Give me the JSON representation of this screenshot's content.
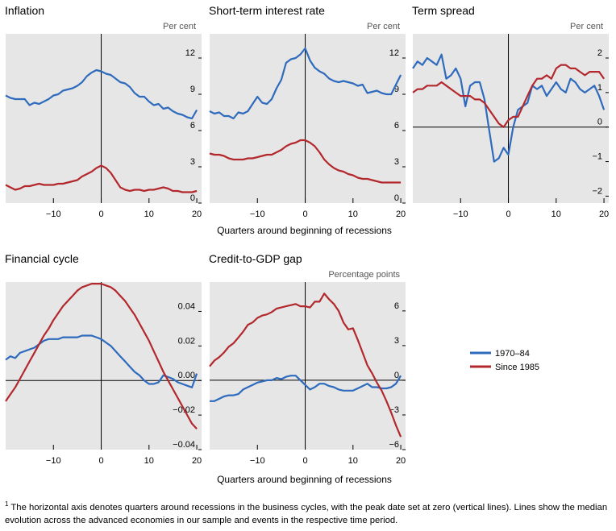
{
  "colors": {
    "series_1970": "#2f6bbd",
    "series_1985": "#b3282d",
    "plot_bg": "#e6e6e6",
    "axis": "#000000"
  },
  "legend": {
    "items": [
      "1970–84",
      "Since 1985"
    ]
  },
  "footnote": {
    "marker": "1",
    "text": "The horizontal axis denotes quarters around recessions in the business cycles, with the peak date set at zero (vertical lines). Lines show the median evolution across the advanced economies in our sample and events in the respective time period."
  },
  "chart_data": [
    {
      "id": "inflation",
      "type": "line",
      "title": "Inflation",
      "unit_label": "Per cent",
      "xlim": [
        -20,
        21
      ],
      "ylim": [
        0,
        14
      ],
      "xticks": [
        -10,
        0,
        10,
        20
      ],
      "yticks": [
        0,
        3,
        6,
        9,
        12
      ],
      "ytick_labels": [
        "0",
        "3",
        "6",
        "9",
        "12"
      ],
      "xlabel": "",
      "series": [
        {
          "name": "1970–84",
          "x": [
            -20,
            -19,
            -18,
            -17,
            -16,
            -15,
            -14,
            -13,
            -12,
            -11,
            -10,
            -9,
            -8,
            -7,
            -6,
            -5,
            -4,
            -3,
            -2,
            -1,
            0,
            1,
            2,
            3,
            4,
            5,
            6,
            7,
            8,
            9,
            10,
            11,
            12,
            13,
            14,
            15,
            16,
            17,
            18,
            19,
            20
          ],
          "values": [
            8.9,
            8.7,
            8.6,
            8.6,
            8.6,
            8.1,
            8.3,
            8.2,
            8.4,
            8.6,
            8.9,
            9.0,
            9.3,
            9.4,
            9.5,
            9.7,
            10.0,
            10.5,
            10.8,
            11.0,
            10.9,
            10.7,
            10.6,
            10.3,
            10.0,
            9.9,
            9.6,
            9.1,
            8.8,
            8.8,
            8.4,
            8.1,
            8.2,
            7.8,
            7.9,
            7.6,
            7.4,
            7.3,
            7.1,
            7.0,
            7.7
          ]
        },
        {
          "name": "Since 1985",
          "x": [
            -20,
            -19,
            -18,
            -17,
            -16,
            -15,
            -14,
            -13,
            -12,
            -11,
            -10,
            -9,
            -8,
            -7,
            -6,
            -5,
            -4,
            -3,
            -2,
            -1,
            0,
            1,
            2,
            3,
            4,
            5,
            6,
            7,
            8,
            9,
            10,
            11,
            12,
            13,
            14,
            15,
            16,
            17,
            18,
            19,
            20
          ],
          "values": [
            1.5,
            1.3,
            1.1,
            1.2,
            1.4,
            1.4,
            1.5,
            1.6,
            1.5,
            1.5,
            1.5,
            1.6,
            1.6,
            1.7,
            1.8,
            1.9,
            2.2,
            2.4,
            2.6,
            2.9,
            3.1,
            2.9,
            2.5,
            1.9,
            1.3,
            1.1,
            1.0,
            1.1,
            1.1,
            1.0,
            1.1,
            1.1,
            1.2,
            1.3,
            1.2,
            1.0,
            1.0,
            0.9,
            0.9,
            0.9,
            1.0
          ]
        }
      ]
    },
    {
      "id": "short_rate",
      "type": "line",
      "title": "Short-term interest rate",
      "unit_label": "Per cent",
      "xlim": [
        -20,
        21
      ],
      "ylim": [
        0,
        14
      ],
      "xticks": [
        -10,
        0,
        10,
        20
      ],
      "yticks": [
        0,
        3,
        6,
        9,
        12
      ],
      "ytick_labels": [
        "0",
        "3",
        "6",
        "9",
        "12"
      ],
      "xlabel": "Quarters around beginning of recessions",
      "series": [
        {
          "name": "1970–84",
          "x": [
            -20,
            -19,
            -18,
            -17,
            -16,
            -15,
            -14,
            -13,
            -12,
            -11,
            -10,
            -9,
            -8,
            -7,
            -6,
            -5,
            -4,
            -3,
            -2,
            -1,
            0,
            1,
            2,
            3,
            4,
            5,
            6,
            7,
            8,
            9,
            10,
            11,
            12,
            13,
            14,
            15,
            16,
            17,
            18,
            19,
            20
          ],
          "values": [
            7.6,
            7.4,
            7.5,
            7.2,
            7.2,
            7.0,
            7.5,
            7.4,
            7.6,
            8.2,
            8.8,
            8.3,
            8.2,
            8.6,
            9.5,
            10.2,
            11.6,
            11.9,
            12.0,
            12.3,
            12.8,
            11.8,
            11.2,
            10.9,
            10.7,
            10.3,
            10.1,
            10.0,
            10.1,
            10.0,
            9.9,
            9.7,
            9.8,
            9.1,
            9.2,
            9.3,
            9.1,
            9.0,
            9.0,
            9.8,
            10.6
          ]
        },
        {
          "name": "Since 1985",
          "x": [
            -20,
            -19,
            -18,
            -17,
            -16,
            -15,
            -14,
            -13,
            -12,
            -11,
            -10,
            -9,
            -8,
            -7,
            -6,
            -5,
            -4,
            -3,
            -2,
            -1,
            0,
            1,
            2,
            3,
            4,
            5,
            6,
            7,
            8,
            9,
            10,
            11,
            12,
            13,
            14,
            15,
            16,
            17,
            18,
            19,
            20
          ],
          "values": [
            4.1,
            4.0,
            4.0,
            3.9,
            3.7,
            3.6,
            3.6,
            3.6,
            3.7,
            3.7,
            3.8,
            3.9,
            4.0,
            4.0,
            4.2,
            4.4,
            4.7,
            4.9,
            5.0,
            5.2,
            5.2,
            5.0,
            4.7,
            4.2,
            3.6,
            3.2,
            2.9,
            2.7,
            2.6,
            2.4,
            2.3,
            2.1,
            2.0,
            2.0,
            1.9,
            1.8,
            1.7,
            1.7,
            1.7,
            1.7,
            1.7
          ]
        }
      ]
    },
    {
      "id": "term_spread",
      "type": "line",
      "title": "Term spread",
      "unit_label": "Per cent",
      "xlim": [
        -20,
        21
      ],
      "ylim": [
        -2.2,
        2.7
      ],
      "xticks": [
        -10,
        0,
        10,
        20
      ],
      "yticks": [
        -2,
        -1,
        0,
        1,
        2
      ],
      "ytick_labels": [
        "−2",
        "−1",
        "0",
        "1",
        "2"
      ],
      "xlabel": "",
      "series": [
        {
          "name": "1970–84",
          "x": [
            -20,
            -19,
            -18,
            -17,
            -16,
            -15,
            -14,
            -13,
            -12,
            -11,
            -10,
            -9,
            -8,
            -7,
            -6,
            -5,
            -4,
            -3,
            -2,
            -1,
            0,
            1,
            2,
            3,
            4,
            5,
            6,
            7,
            8,
            9,
            10,
            11,
            12,
            13,
            14,
            15,
            16,
            17,
            18,
            19,
            20
          ],
          "values": [
            1.7,
            1.9,
            1.8,
            2.0,
            1.9,
            1.8,
            2.1,
            1.4,
            1.5,
            1.7,
            1.4,
            0.6,
            1.2,
            1.3,
            1.3,
            0.8,
            -0.1,
            -1.0,
            -0.9,
            -0.6,
            -0.8,
            0.0,
            0.5,
            0.6,
            0.7,
            1.2,
            1.1,
            1.2,
            0.9,
            1.1,
            1.3,
            1.1,
            1.0,
            1.4,
            1.3,
            1.1,
            1.0,
            1.1,
            1.2,
            0.9,
            0.5
          ]
        },
        {
          "name": "Since 1985",
          "x": [
            -20,
            -19,
            -18,
            -17,
            -16,
            -15,
            -14,
            -13,
            -12,
            -11,
            -10,
            -9,
            -8,
            -7,
            -6,
            -5,
            -4,
            -3,
            -2,
            -1,
            0,
            1,
            2,
            3,
            4,
            5,
            6,
            7,
            8,
            9,
            10,
            11,
            12,
            13,
            14,
            15,
            16,
            17,
            18,
            19,
            20
          ],
          "values": [
            1.0,
            1.1,
            1.1,
            1.2,
            1.2,
            1.2,
            1.3,
            1.2,
            1.1,
            1.0,
            0.9,
            0.9,
            0.9,
            0.8,
            0.8,
            0.7,
            0.5,
            0.3,
            0.1,
            0.0,
            0.2,
            0.3,
            0.3,
            0.6,
            0.9,
            1.2,
            1.4,
            1.4,
            1.5,
            1.4,
            1.7,
            1.8,
            1.8,
            1.7,
            1.7,
            1.6,
            1.5,
            1.6,
            1.6,
            1.6,
            1.4
          ]
        }
      ]
    },
    {
      "id": "financial_cycle",
      "type": "line",
      "title": "Financial cycle",
      "unit_label": "",
      "xlim": [
        -20,
        21
      ],
      "ylim": [
        -0.04,
        0.057
      ],
      "xticks": [
        -10,
        0,
        10,
        20
      ],
      "yticks": [
        -0.04,
        -0.02,
        0.0,
        0.02,
        0.04
      ],
      "ytick_labels": [
        "−0.04",
        "−0.02",
        "0.00",
        "0.02",
        "0.04"
      ],
      "xlabel": "",
      "series": [
        {
          "name": "1970–84",
          "x": [
            -20,
            -19,
            -18,
            -17,
            -16,
            -15,
            -14,
            -13,
            -12,
            -11,
            -10,
            -9,
            -8,
            -7,
            -6,
            -5,
            -4,
            -3,
            -2,
            -1,
            0,
            1,
            2,
            3,
            4,
            5,
            6,
            7,
            8,
            9,
            10,
            11,
            12,
            13,
            14,
            15,
            16,
            17,
            18,
            19,
            20
          ],
          "values": [
            0.012,
            0.014,
            0.013,
            0.016,
            0.017,
            0.018,
            0.019,
            0.021,
            0.023,
            0.024,
            0.024,
            0.024,
            0.025,
            0.025,
            0.025,
            0.025,
            0.026,
            0.026,
            0.026,
            0.025,
            0.024,
            0.022,
            0.02,
            0.017,
            0.014,
            0.011,
            0.008,
            0.005,
            0.003,
            0.0,
            -0.002,
            -0.002,
            -0.001,
            0.003,
            0.002,
            0.001,
            -0.001,
            -0.002,
            -0.003,
            -0.004,
            0.004
          ]
        },
        {
          "name": "Since 1985",
          "x": [
            -20,
            -19,
            -18,
            -17,
            -16,
            -15,
            -14,
            -13,
            -12,
            -11,
            -10,
            -9,
            -8,
            -7,
            -6,
            -5,
            -4,
            -3,
            -2,
            -1,
            0,
            1,
            2,
            3,
            4,
            5,
            6,
            7,
            8,
            9,
            10,
            11,
            12,
            13,
            14,
            15,
            16,
            17,
            18,
            19,
            20
          ],
          "values": [
            -0.012,
            -0.008,
            -0.004,
            0.001,
            0.006,
            0.011,
            0.016,
            0.021,
            0.026,
            0.03,
            0.035,
            0.039,
            0.043,
            0.046,
            0.049,
            0.052,
            0.054,
            0.055,
            0.056,
            0.056,
            0.056,
            0.055,
            0.054,
            0.052,
            0.049,
            0.046,
            0.042,
            0.038,
            0.033,
            0.028,
            0.023,
            0.017,
            0.011,
            0.005,
            0.0,
            -0.005,
            -0.01,
            -0.015,
            -0.02,
            -0.025,
            -0.028
          ]
        }
      ]
    },
    {
      "id": "credit_gdp_gap",
      "type": "line",
      "title": "Credit-to-GDP gap",
      "unit_label": "Percentage points",
      "xlim": [
        -20,
        21
      ],
      "ylim": [
        -6,
        8.5
      ],
      "xticks": [
        -10,
        0,
        10,
        20
      ],
      "yticks": [
        -6,
        -3,
        0,
        3,
        6
      ],
      "ytick_labels": [
        "−6",
        "−3",
        "0",
        "3",
        "6"
      ],
      "xlabel": "Quarters around beginning of recessions",
      "series": [
        {
          "name": "1970–84",
          "x": [
            -20,
            -19,
            -18,
            -17,
            -16,
            -15,
            -14,
            -13,
            -12,
            -11,
            -10,
            -9,
            -8,
            -7,
            -6,
            -5,
            -4,
            -3,
            -2,
            -1,
            0,
            1,
            2,
            3,
            4,
            5,
            6,
            7,
            8,
            9,
            10,
            11,
            12,
            13,
            14,
            15,
            16,
            17,
            18,
            19,
            20
          ],
          "values": [
            -1.8,
            -1.8,
            -1.6,
            -1.4,
            -1.3,
            -1.3,
            -1.2,
            -0.8,
            -0.6,
            -0.4,
            -0.2,
            -0.1,
            0.0,
            0.0,
            0.2,
            0.1,
            0.3,
            0.4,
            0.4,
            0.0,
            -0.4,
            -0.8,
            -0.6,
            -0.3,
            -0.3,
            -0.5,
            -0.6,
            -0.8,
            -0.9,
            -0.9,
            -0.9,
            -0.7,
            -0.5,
            -0.3,
            -0.6,
            -0.6,
            -0.7,
            -0.7,
            -0.6,
            -0.3,
            0.4
          ]
        },
        {
          "name": "Since 1985",
          "x": [
            -20,
            -19,
            -18,
            -17,
            -16,
            -15,
            -14,
            -13,
            -12,
            -11,
            -10,
            -9,
            -8,
            -7,
            -6,
            -5,
            -4,
            -3,
            -2,
            -1,
            0,
            1,
            2,
            3,
            4,
            5,
            6,
            7,
            8,
            9,
            10,
            11,
            12,
            13,
            14,
            15,
            16,
            17,
            18,
            19,
            20
          ],
          "values": [
            1.2,
            1.7,
            2.0,
            2.4,
            2.9,
            3.2,
            3.7,
            4.2,
            4.8,
            5.0,
            5.4,
            5.6,
            5.7,
            5.9,
            6.2,
            6.3,
            6.4,
            6.5,
            6.6,
            6.4,
            6.4,
            6.3,
            6.8,
            6.8,
            7.5,
            7.0,
            6.6,
            6.0,
            5.0,
            4.4,
            4.5,
            3.5,
            2.4,
            1.3,
            0.6,
            -0.2,
            -0.9,
            -1.8,
            -2.8,
            -3.9,
            -4.9
          ]
        }
      ]
    }
  ]
}
